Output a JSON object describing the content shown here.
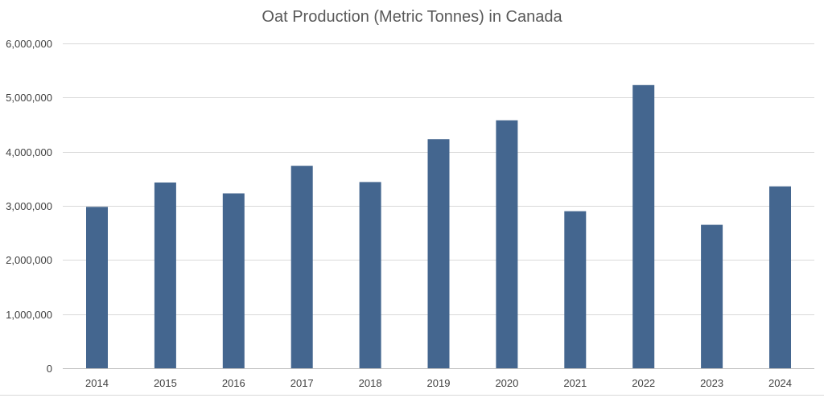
{
  "chart_data": {
    "type": "bar",
    "title": "Oat Production (Metric Tonnes) in Canada",
    "xlabel": "",
    "ylabel": "",
    "categories": [
      "2014",
      "2015",
      "2016",
      "2017",
      "2018",
      "2019",
      "2020",
      "2021",
      "2022",
      "2023",
      "2024"
    ],
    "values": [
      2980000,
      3430000,
      3230000,
      3740000,
      3440000,
      4230000,
      4580000,
      2900000,
      5230000,
      2650000,
      3360000
    ],
    "ylim": [
      0,
      6000000
    ],
    "yticks": [
      0,
      1000000,
      2000000,
      3000000,
      4000000,
      5000000,
      6000000
    ],
    "ytick_labels": [
      "0",
      "1,000,000",
      "2,000,000",
      "3,000,000",
      "4,000,000",
      "5,000,000",
      "6,000,000"
    ],
    "grid": true,
    "legend": "none",
    "bar_color": "#44668f"
  }
}
